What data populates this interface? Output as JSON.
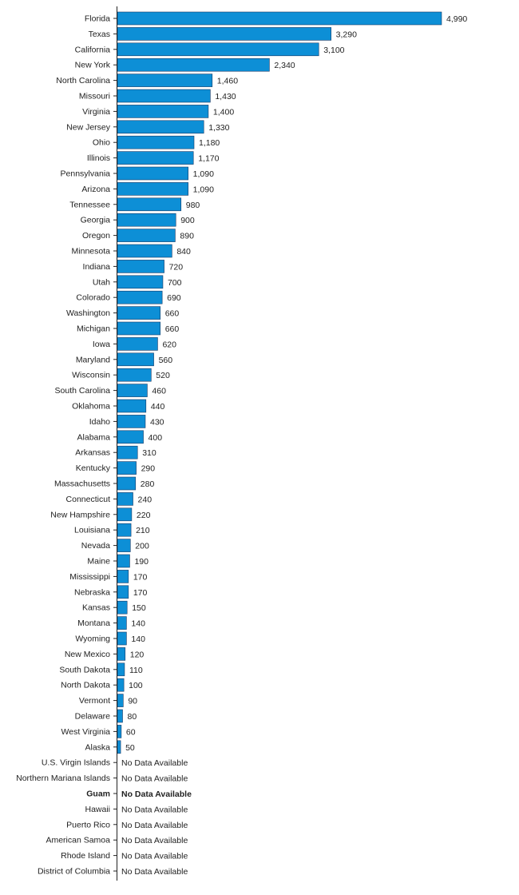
{
  "chart_data": {
    "type": "bar",
    "orientation": "horizontal",
    "bar_color": "#0d8fd6",
    "bar_stroke": "#1a3a66",
    "no_data_label": "No Data Available",
    "highlighted_category": "Guam",
    "grid": false,
    "categories": [
      "Florida",
      "Texas",
      "California",
      "New York",
      "North Carolina",
      "Missouri",
      "Virginia",
      "New Jersey",
      "Ohio",
      "Illinois",
      "Pennsylvania",
      "Arizona",
      "Tennessee",
      "Georgia",
      "Oregon",
      "Minnesota",
      "Indiana",
      "Utah",
      "Colorado",
      "Washington",
      "Michigan",
      "Iowa",
      "Maryland",
      "Wisconsin",
      "South Carolina",
      "Oklahoma",
      "Idaho",
      "Alabama",
      "Arkansas",
      "Kentucky",
      "Massachusetts",
      "Connecticut",
      "New Hampshire",
      "Louisiana",
      "Nevada",
      "Maine",
      "Mississippi",
      "Nebraska",
      "Kansas",
      "Montana",
      "Wyoming",
      "New Mexico",
      "South Dakota",
      "North Dakota",
      "Vermont",
      "Delaware",
      "West Virginia",
      "Alaska",
      "U.S. Virgin Islands",
      "Northern Mariana Islands",
      "Guam",
      "Hawaii",
      "Puerto Rico",
      "American Samoa",
      "Rhode Island",
      "District of Columbia"
    ],
    "values": [
      4990,
      3290,
      3100,
      2340,
      1460,
      1430,
      1400,
      1330,
      1180,
      1170,
      1090,
      1090,
      980,
      900,
      890,
      840,
      720,
      700,
      690,
      660,
      660,
      620,
      560,
      520,
      460,
      440,
      430,
      400,
      310,
      290,
      280,
      240,
      220,
      210,
      200,
      190,
      170,
      170,
      150,
      140,
      140,
      120,
      110,
      100,
      90,
      80,
      60,
      50,
      null,
      null,
      null,
      null,
      null,
      null,
      null,
      null
    ],
    "value_labels": [
      "4,990",
      "3,290",
      "3,100",
      "2,340",
      "1,460",
      "1,430",
      "1,400",
      "1,330",
      "1,180",
      "1,170",
      "1,090",
      "1,090",
      "980",
      "900",
      "890",
      "840",
      "720",
      "700",
      "690",
      "660",
      "660",
      "620",
      "560",
      "520",
      "460",
      "440",
      "430",
      "400",
      "310",
      "290",
      "280",
      "240",
      "220",
      "210",
      "200",
      "190",
      "170",
      "170",
      "150",
      "140",
      "140",
      "120",
      "110",
      "100",
      "90",
      "80",
      "60",
      "50",
      "No Data Available",
      "No Data Available",
      "No Data Available",
      "No Data Available",
      "No Data Available",
      "No Data Available",
      "No Data Available",
      "No Data Available"
    ]
  }
}
